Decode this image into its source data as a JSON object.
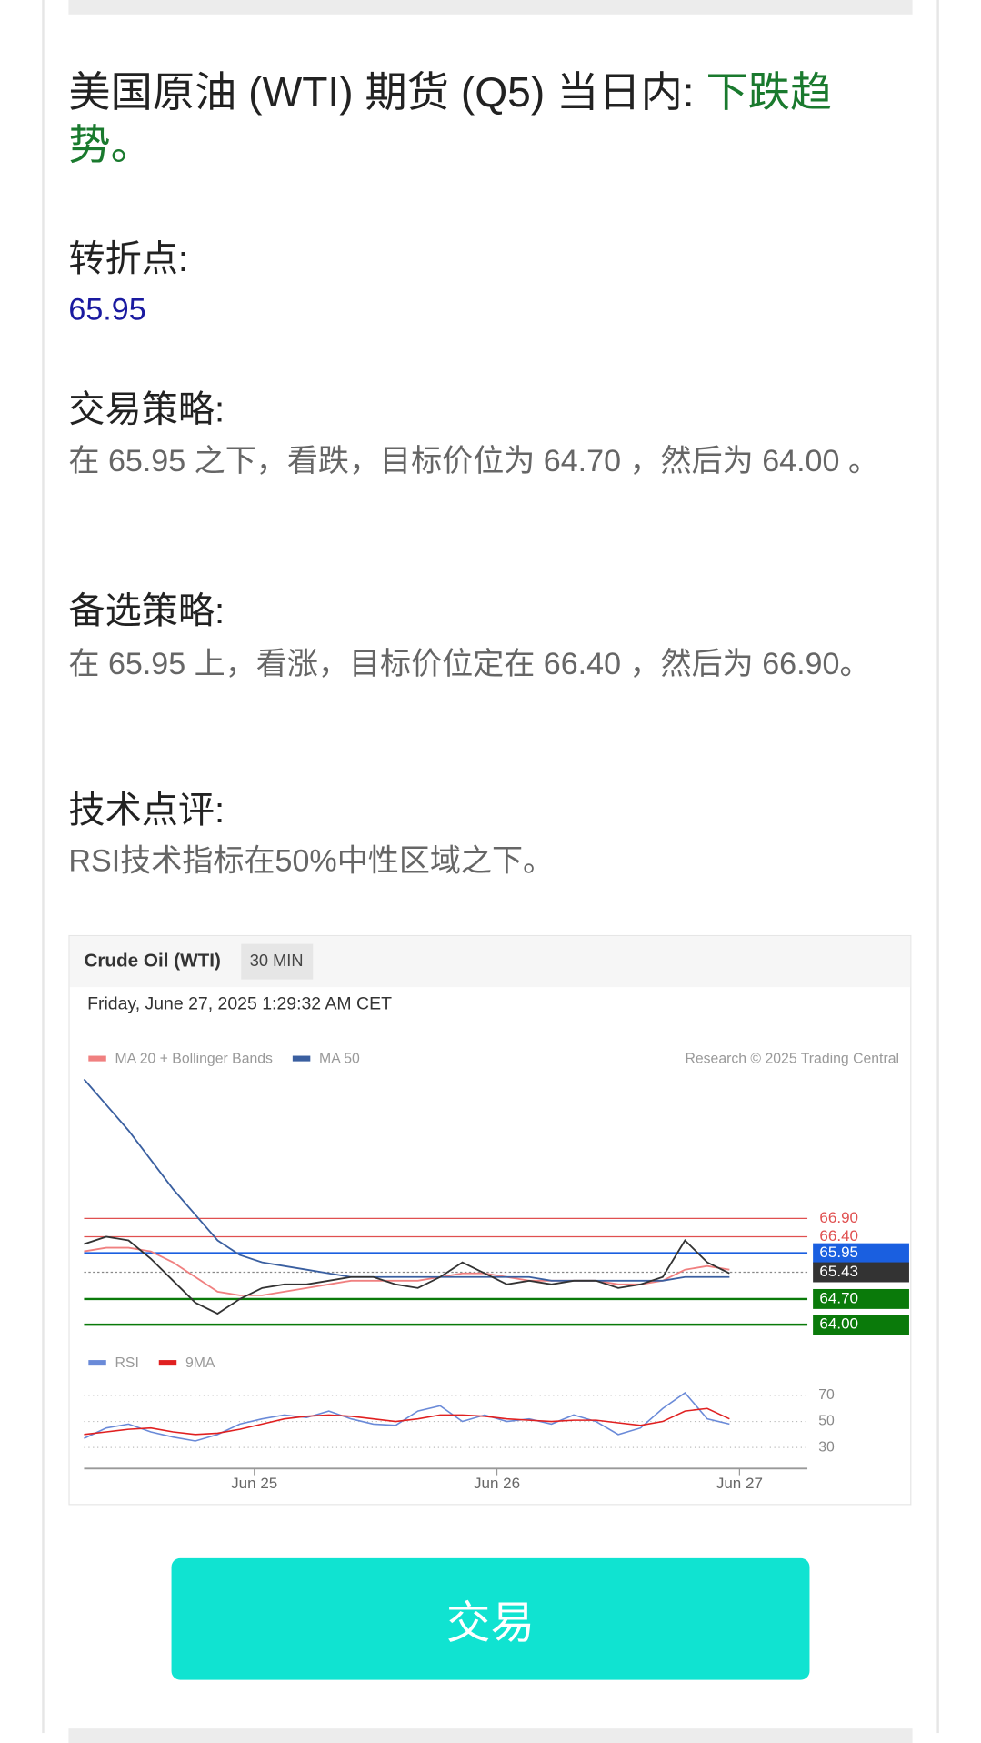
{
  "heading": {
    "prefix": "美国原油 (WTI) 期货 (Q5) 当日内: ",
    "trend": "下跌趋势。"
  },
  "pivot": {
    "label": "转折点:",
    "value": "65.95"
  },
  "strategy": {
    "label": "交易策略:",
    "text": "在 65.95 之下，看跌，目标价位为 64.70 ，然后为 64.00 。"
  },
  "alternative": {
    "label": "备选策略:",
    "text": "在 65.95 上，看涨，目标价位定在 66.40 ，然后为 66.90。"
  },
  "comment": {
    "label": "技术点评:",
    "text": "RSI技术指标在50%中性区域之下。"
  },
  "chart_data": [
    {
      "type": "line",
      "title": "Crude Oil (WTI)",
      "timeframe": "30 MIN",
      "subtitle": "Friday, June 27, 2025 1:29:32 AM CET",
      "credit": "Research © 2025 Trading Central",
      "xlim": [
        0,
        32.5
      ],
      "ylim": [
        63.6,
        70.9
      ],
      "values": [
        66.2,
        66.4,
        66.3,
        65.8,
        65.2,
        64.6,
        64.3,
        64.7,
        65.0,
        65.1,
        65.1,
        65.2,
        65.3,
        65.3,
        65.1,
        65.0,
        65.3,
        65.7,
        65.4,
        65.1,
        65.2,
        65.1,
        65.2,
        65.2,
        65.0,
        65.1,
        65.3,
        66.3,
        65.7,
        65.4
      ],
      "color": "#333333",
      "series": [
        {
          "name": "MA 20 + Bollinger Bands",
          "color": "#f08080",
          "values": [
            66.0,
            66.1,
            66.1,
            66.0,
            65.7,
            65.3,
            64.9,
            64.8,
            64.8,
            64.9,
            65.0,
            65.1,
            65.2,
            65.2,
            65.2,
            65.2,
            65.3,
            65.4,
            65.4,
            65.3,
            65.2,
            65.2,
            65.2,
            65.2,
            65.1,
            65.1,
            65.2,
            65.5,
            65.6,
            65.5
          ]
        },
        {
          "name": "MA 50",
          "color": "#3a5fa0",
          "values": [
            70.7,
            70.0,
            69.3,
            68.5,
            67.7,
            67.0,
            66.3,
            65.9,
            65.7,
            65.6,
            65.5,
            65.4,
            65.3,
            65.3,
            65.3,
            65.3,
            65.3,
            65.3,
            65.3,
            65.3,
            65.3,
            65.2,
            65.2,
            65.2,
            65.2,
            65.2,
            65.2,
            65.3,
            65.3,
            65.3
          ]
        }
      ],
      "levels": [
        {
          "value": 66.9,
          "label": "66.90",
          "color": "#e05050",
          "boxed": false
        },
        {
          "value": 66.4,
          "label": "66.40",
          "color": "#e05050",
          "boxed": false
        },
        {
          "value": 65.95,
          "label": "65.95",
          "color": "#1a5fe0",
          "boxed": true
        },
        {
          "value": 65.43,
          "label": "65.43",
          "color": "#333333",
          "boxed": true,
          "dotted": true
        },
        {
          "value": 64.7,
          "label": "64.70",
          "color": "#0a7a0a",
          "boxed": true
        },
        {
          "value": 64.0,
          "label": "64.00",
          "color": "#0a7a0a",
          "boxed": true
        }
      ]
    },
    {
      "type": "line",
      "xlim": [
        0,
        32.5
      ],
      "ylim": [
        15,
        80
      ],
      "yticks": [
        70,
        50,
        30
      ],
      "grid": true,
      "xticks": [
        {
          "value": 7.65,
          "label": "Jun 25"
        },
        {
          "value": 18.55,
          "label": "Jun 26"
        },
        {
          "value": 29.45,
          "label": "Jun 27"
        }
      ],
      "series": [
        {
          "name": "RSI",
          "color": "#6a8ad8",
          "values": [
            37,
            45,
            48,
            42,
            38,
            35,
            40,
            48,
            52,
            55,
            53,
            58,
            52,
            48,
            47,
            58,
            62,
            50,
            55,
            50,
            52,
            48,
            55,
            50,
            40,
            45,
            60,
            72,
            52,
            48
          ]
        },
        {
          "name": "9MA",
          "color": "#e02020",
          "values": [
            40,
            42,
            44,
            45,
            42,
            40,
            41,
            44,
            48,
            52,
            54,
            55,
            54,
            52,
            50,
            52,
            55,
            55,
            54,
            52,
            51,
            50,
            51,
            51,
            49,
            47,
            50,
            58,
            60,
            52
          ]
        }
      ]
    }
  ],
  "button": "交易"
}
